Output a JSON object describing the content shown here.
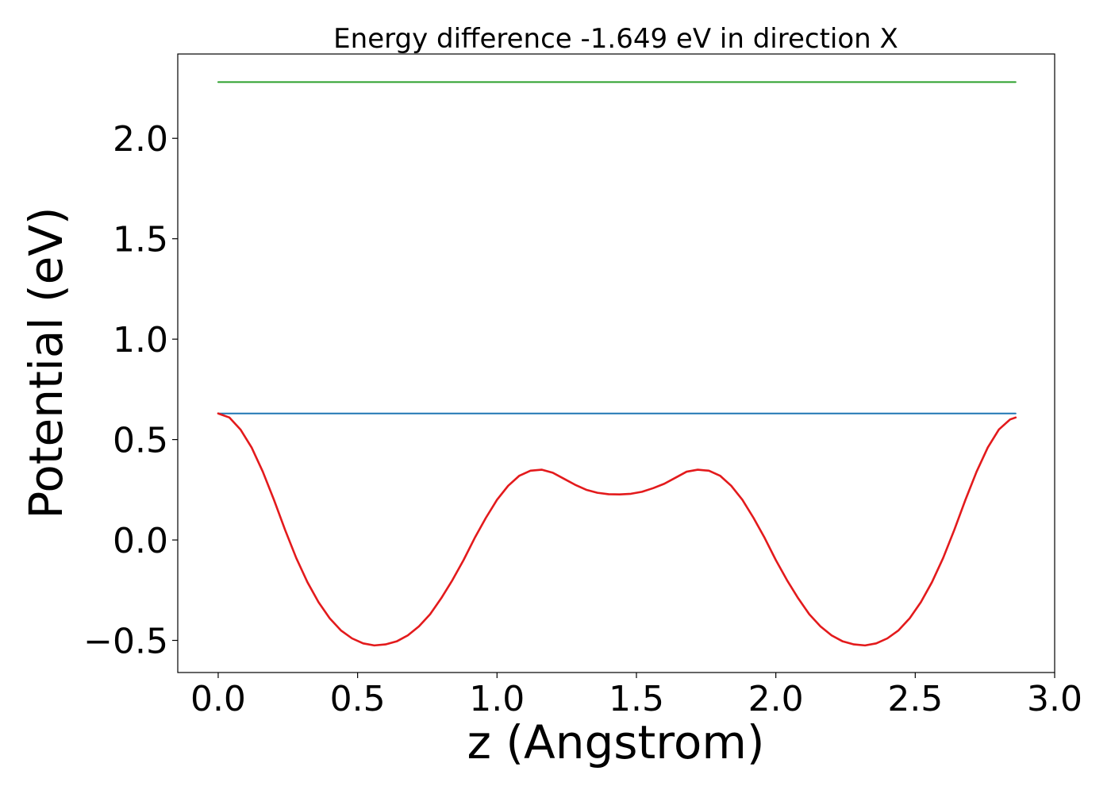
{
  "chart_data": {
    "type": "line",
    "title": "Energy difference -1.649 eV in direction X",
    "xlabel": "z (Angstrom)",
    "ylabel": "Potential (eV)",
    "xlim": [
      -0.145,
      3.0
    ],
    "ylim": [
      -0.66,
      2.42
    ],
    "x_ticks": [
      0.0,
      0.5,
      1.0,
      1.5,
      2.0,
      2.5,
      3.0
    ],
    "x_tick_labels": [
      "0.0",
      "0.5",
      "1.0",
      "1.5",
      "2.0",
      "2.5",
      "3.0"
    ],
    "y_ticks": [
      -0.5,
      0.0,
      0.5,
      1.0,
      1.5,
      2.0
    ],
    "y_tick_labels": [
      "−0.5",
      "0.0",
      "0.5",
      "1.0",
      "1.5",
      "2.0"
    ],
    "grid": false,
    "legend": "none",
    "colors": {
      "potential": "#e31a1c",
      "level_low": "#1f77b4",
      "level_high": "#2ca02c",
      "axes": "#000000",
      "background": "#ffffff"
    },
    "series": [
      {
        "kind": "horizontal",
        "color_key": "level_high",
        "x": [
          0.0,
          2.86
        ],
        "y": [
          2.28,
          2.28
        ]
      },
      {
        "kind": "horizontal",
        "color_key": "level_low",
        "x": [
          0.0,
          2.86
        ],
        "y": [
          0.63,
          0.63
        ]
      },
      {
        "kind": "curve",
        "color_key": "potential",
        "x": [
          0.0,
          0.04,
          0.08,
          0.12,
          0.16,
          0.2,
          0.24,
          0.28,
          0.32,
          0.36,
          0.4,
          0.44,
          0.48,
          0.52,
          0.56,
          0.6,
          0.64,
          0.68,
          0.72,
          0.76,
          0.8,
          0.84,
          0.88,
          0.92,
          0.96,
          1.0,
          1.04,
          1.08,
          1.12,
          1.16,
          1.2,
          1.24,
          1.28,
          1.32,
          1.36,
          1.4,
          1.44,
          1.48,
          1.52,
          1.56,
          1.6,
          1.64,
          1.68,
          1.72,
          1.76,
          1.8,
          1.84,
          1.88,
          1.92,
          1.96,
          2.0,
          2.04,
          2.08,
          2.12,
          2.16,
          2.2,
          2.24,
          2.28,
          2.32,
          2.36,
          2.4,
          2.44,
          2.48,
          2.52,
          2.56,
          2.6,
          2.64,
          2.68,
          2.72,
          2.76,
          2.8,
          2.84,
          2.86
        ],
        "y": [
          0.63,
          0.61,
          0.55,
          0.46,
          0.34,
          0.2,
          0.05,
          -0.09,
          -0.21,
          -0.31,
          -0.39,
          -0.45,
          -0.49,
          -0.515,
          -0.525,
          -0.52,
          -0.505,
          -0.475,
          -0.43,
          -0.37,
          -0.29,
          -0.2,
          -0.1,
          0.01,
          0.11,
          0.2,
          0.27,
          0.32,
          0.345,
          0.35,
          0.335,
          0.305,
          0.275,
          0.25,
          0.235,
          0.228,
          0.227,
          0.23,
          0.24,
          0.258,
          0.28,
          0.31,
          0.34,
          0.35,
          0.345,
          0.32,
          0.27,
          0.2,
          0.11,
          0.01,
          -0.1,
          -0.2,
          -0.29,
          -0.37,
          -0.43,
          -0.475,
          -0.505,
          -0.52,
          -0.525,
          -0.515,
          -0.49,
          -0.45,
          -0.39,
          -0.31,
          -0.21,
          -0.09,
          0.05,
          0.2,
          0.34,
          0.46,
          0.55,
          0.6,
          0.61
        ]
      }
    ]
  }
}
